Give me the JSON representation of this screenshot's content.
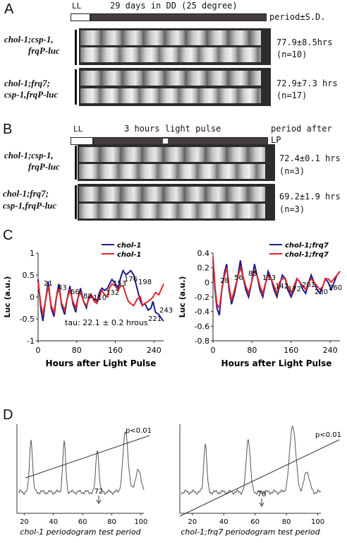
{
  "panelA": {
    "letter": "A",
    "ll_label": "LL",
    "dd_label": "29 days in DD (25 degree)",
    "period_header": "period±S.D.",
    "rows": [
      {
        "genotype_line1": "chol-1;csp-1,",
        "genotype_line2": "frqP-luc",
        "period": "77.9±8.5hrs",
        "n": "(n=10)"
      },
      {
        "genotype_line1": "chol-1;frq7;",
        "genotype_line2": "csp-1,frqP-luc",
        "period": "72.9±7.3 hrs",
        "n": "(n=17)"
      }
    ]
  },
  "panelB": {
    "letter": "B",
    "ll_label": "LL",
    "pulse_label": "3 hours light pulse",
    "period_header": "period after LP",
    "rows": [
      {
        "genotype_line1": "chol-1;csp-1,",
        "genotype_line2": "frqP-luc",
        "period": "72.4±0.1 hrs",
        "n": "(n=3)"
      },
      {
        "genotype_line1": "chol-1;frq7;",
        "genotype_line2": "csp-1,frqP-luc",
        "period": "69.2±1.9 hrs",
        "n": "(n=3)"
      }
    ]
  },
  "panelC": {
    "letter": "C",
    "tau_text": "tau: 22.1 ± 0.2 hrous",
    "colors": {
      "blue": "#1c1c8c",
      "red": "#e0282a"
    },
    "chart_data": [
      {
        "type": "line",
        "xlabel": "Hours after Light Pulse",
        "ylabel": "Luc (a.u.)",
        "xlim": [
          0,
          260
        ],
        "ylim": [
          -1,
          1
        ],
        "xticks": [
          "0",
          "80",
          "160",
          "240"
        ],
        "yticks": [
          "1",
          "0.5",
          "0",
          "-0.5",
          "-1"
        ],
        "series": [
          {
            "name": "chol-1",
            "color": "#1c1c8c",
            "x": [
              0,
              6,
              10,
              15,
              21,
              27,
              33,
              38,
              43,
              49,
              55,
              60,
              66,
              72,
              78,
              83,
              88,
              94,
              100,
              105,
              110,
              116,
              122,
              127,
              132,
              138,
              144,
              148,
              153,
              160,
              166,
              171,
              176,
              182,
              187,
              192,
              198,
              205,
              212,
              216,
              221,
              228,
              234,
              238,
              243,
              250,
              256,
              260
            ],
            "values": [
              0.4,
              -0.3,
              -0.55,
              -0.1,
              0.35,
              -0.25,
              -0.45,
              0.0,
              0.3,
              -0.2,
              -0.4,
              -0.05,
              0.25,
              -0.15,
              -0.35,
              0.0,
              0.2,
              -0.1,
              -0.25,
              0.0,
              0.05,
              -0.05,
              -0.1,
              0.1,
              0.2,
              0.15,
              0.2,
              0.3,
              0.4,
              0.3,
              0.2,
              0.45,
              0.6,
              0.5,
              0.55,
              0.6,
              0.5,
              0.2,
              -0.1,
              -0.2,
              -0.15,
              -0.3,
              -0.25,
              -0.1,
              -0.35,
              -0.4,
              -0.5,
              -0.55
            ]
          },
          {
            "name": "chol-1",
            "color": "#e0282a",
            "x": [
              0,
              6,
              10,
              15,
              21,
              27,
              33,
              38,
              43,
              49,
              55,
              60,
              66,
              72,
              78,
              83,
              88,
              94,
              100,
              105,
              110,
              116,
              122,
              127,
              132,
              138,
              144,
              148,
              153,
              160,
              166,
              171,
              176,
              182,
              187,
              192,
              198,
              205,
              212,
              216,
              221,
              228,
              234,
              238,
              243,
              250,
              256,
              260
            ],
            "values": [
              0.35,
              -0.2,
              -0.4,
              -0.1,
              0.25,
              -0.2,
              -0.35,
              0.0,
              0.2,
              -0.15,
              -0.3,
              -0.05,
              0.15,
              -0.1,
              -0.25,
              0.0,
              0.1,
              -0.1,
              -0.2,
              -0.05,
              0.05,
              -0.1,
              -0.15,
              0.0,
              0.15,
              0.05,
              0.0,
              0.2,
              0.3,
              0.25,
              0.15,
              0.25,
              0.25,
              0.05,
              -0.1,
              -0.15,
              -0.2,
              -0.05,
              0.0,
              -0.2,
              -0.15,
              -0.1,
              -0.05,
              0.0,
              0.1,
              0.05,
              0.2,
              0.3
            ]
          }
        ],
        "annotations": [
          "21",
          "43",
          "66",
          "88",
          "110",
          "132",
          "153",
          "176",
          "198",
          "221",
          "243"
        ]
      },
      {
        "type": "line",
        "xlabel": "Hours after Light Pulse",
        "ylabel": "Luc (a.u.)",
        "xlim": [
          0,
          260
        ],
        "ylim": [
          -0.8,
          0.4
        ],
        "xticks": [
          "0",
          "80",
          "160",
          "240"
        ],
        "yticks": [
          "0.4",
          "0.2",
          "0",
          "-0.2",
          "-0.4",
          "-0.6",
          "-0.8"
        ],
        "series": [
          {
            "name": "chol-1;frq7",
            "color": "#1c1c8c",
            "x": [
              0,
              4,
              8,
              13,
              18,
              24,
              28,
              33,
              38,
              44,
              50,
              56,
              61,
              67,
              73,
              79,
              85,
              90,
              96,
              102,
              108,
              113,
              119,
              125,
              131,
              136,
              142,
              148,
              153,
              160,
              166,
              172,
              178,
              184,
              190,
              196,
              201,
              207,
              213,
              219,
              225,
              230,
              236,
              242,
              248,
              254,
              260
            ],
            "values": [
              0.3,
              -0.1,
              -0.35,
              -0.45,
              -0.1,
              0.15,
              0.25,
              -0.1,
              -0.3,
              -0.15,
              0.05,
              0.3,
              0.1,
              -0.1,
              -0.2,
              0.0,
              0.25,
              0.1,
              -0.1,
              -0.2,
              0.0,
              0.15,
              0.05,
              -0.1,
              -0.2,
              -0.05,
              0.1,
              0.05,
              -0.1,
              -0.2,
              -0.1,
              0.05,
              0.0,
              -0.1,
              -0.15,
              0.0,
              0.1,
              0.0,
              -0.1,
              -0.15,
              -0.05,
              0.05,
              0.0,
              -0.1,
              0.0,
              0.1,
              0.15
            ]
          },
          {
            "name": "chol-1;frq7",
            "color": "#e0282a",
            "x": [
              0,
              4,
              8,
              13,
              18,
              24,
              28,
              33,
              38,
              44,
              50,
              56,
              61,
              67,
              73,
              79,
              85,
              90,
              96,
              102,
              108,
              113,
              119,
              125,
              131,
              136,
              142,
              148,
              153,
              160,
              166,
              172,
              178,
              184,
              190,
              196,
              201,
              207,
              213,
              219,
              225,
              230,
              236,
              242,
              248,
              254,
              260
            ],
            "values": [
              0.35,
              -0.05,
              -0.3,
              -0.35,
              -0.1,
              0.1,
              0.2,
              -0.05,
              -0.25,
              -0.1,
              0.05,
              0.2,
              0.1,
              -0.05,
              -0.15,
              0.0,
              0.15,
              0.1,
              -0.05,
              -0.15,
              0.0,
              0.1,
              0.05,
              -0.05,
              -0.15,
              0.0,
              0.05,
              0.05,
              -0.05,
              -0.15,
              -0.05,
              0.05,
              0.0,
              -0.05,
              -0.1,
              0.0,
              0.05,
              0.0,
              -0.05,
              -0.1,
              -0.05,
              0.05,
              0.05,
              0.0,
              0.05,
              0.1,
              0.15
            ]
          }
        ],
        "annotations": [
          "28",
          "56",
          "85",
          "113",
          "142",
          "172",
          "201",
          "230",
          "260"
        ]
      }
    ]
  },
  "panelD": {
    "letter": "D",
    "chart_data": [
      {
        "type": "line",
        "xlabel": "chol-1 periodogram test period",
        "xticks": [
          "20",
          "40",
          "60",
          "80",
          "100"
        ],
        "xlim": [
          15,
          102
        ],
        "peaks": [
          "22.5",
          "43.7",
          "66.4",
          "86.5"
        ],
        "significance_label": "p<0.01",
        "arrow_label": "72"
      },
      {
        "type": "line",
        "xlabel": "chol-1;frq7 periodogram test period",
        "xticks": [
          "20",
          "40",
          "60",
          "80",
          "100"
        ],
        "xlim": [
          12,
          102
        ],
        "peaks": [
          "29.3",
          "58.4",
          "86.5"
        ],
        "significance_label": "p<0.01",
        "arrow_label": "70"
      }
    ]
  }
}
